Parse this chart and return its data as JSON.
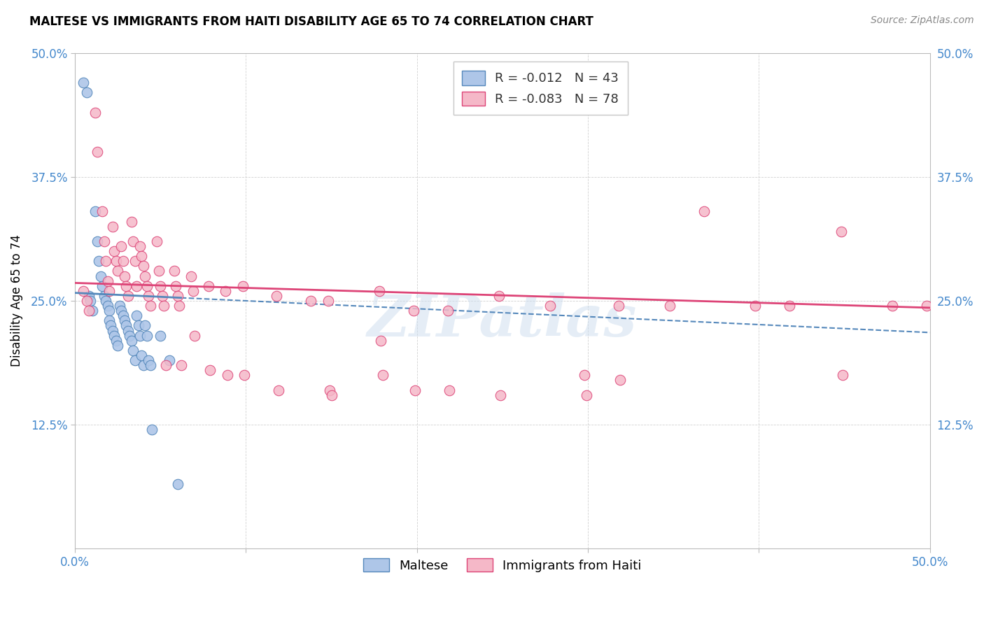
{
  "title": "MALTESE VS IMMIGRANTS FROM HAITI DISABILITY AGE 65 TO 74 CORRELATION CHART",
  "source": "Source: ZipAtlas.com",
  "ylabel": "Disability Age 65 to 74",
  "xlim": [
    0.0,
    0.5
  ],
  "ylim": [
    0.0,
    0.5
  ],
  "xticks": [
    0.0,
    0.1,
    0.2,
    0.3,
    0.4,
    0.5
  ],
  "yticks": [
    0.125,
    0.25,
    0.375,
    0.5
  ],
  "xticklabels_left": [
    "0.0%",
    "",
    "",
    "",
    "",
    "50.0%"
  ],
  "yticklabels": [
    "12.5%",
    "25.0%",
    "37.5%",
    "50.0%"
  ],
  "blue_color": "#aec6e8",
  "pink_color": "#f5b8c8",
  "blue_line_color": "#5588bb",
  "pink_line_color": "#dd4477",
  "legend_R_blue": "-0.012",
  "legend_N_blue": "43",
  "legend_R_pink": "-0.083",
  "legend_N_pink": "78",
  "legend_label_blue": "Maltese",
  "legend_label_pink": "Immigrants from Haiti",
  "watermark": "ZIPatlas",
  "blue_x": [
    0.005,
    0.007,
    0.008,
    0.009,
    0.01,
    0.012,
    0.013,
    0.014,
    0.015,
    0.016,
    0.017,
    0.018,
    0.019,
    0.02,
    0.02,
    0.021,
    0.022,
    0.023,
    0.024,
    0.025,
    0.026,
    0.027,
    0.028,
    0.029,
    0.03,
    0.031,
    0.032,
    0.033,
    0.034,
    0.035,
    0.036,
    0.037,
    0.038,
    0.039,
    0.04,
    0.041,
    0.042,
    0.043,
    0.044,
    0.045,
    0.05,
    0.055,
    0.06
  ],
  "blue_y": [
    0.47,
    0.46,
    0.255,
    0.25,
    0.24,
    0.34,
    0.31,
    0.29,
    0.275,
    0.265,
    0.255,
    0.25,
    0.245,
    0.24,
    0.23,
    0.225,
    0.22,
    0.215,
    0.21,
    0.205,
    0.245,
    0.24,
    0.235,
    0.23,
    0.225,
    0.22,
    0.215,
    0.21,
    0.2,
    0.19,
    0.235,
    0.225,
    0.215,
    0.195,
    0.185,
    0.225,
    0.215,
    0.19,
    0.185,
    0.12,
    0.215,
    0.19,
    0.065
  ],
  "pink_x": [
    0.005,
    0.007,
    0.008,
    0.012,
    0.013,
    0.016,
    0.017,
    0.018,
    0.019,
    0.02,
    0.022,
    0.023,
    0.024,
    0.025,
    0.027,
    0.028,
    0.029,
    0.03,
    0.031,
    0.033,
    0.034,
    0.035,
    0.036,
    0.038,
    0.039,
    0.04,
    0.041,
    0.042,
    0.043,
    0.044,
    0.048,
    0.049,
    0.05,
    0.051,
    0.052,
    0.053,
    0.058,
    0.059,
    0.06,
    0.061,
    0.062,
    0.068,
    0.069,
    0.07,
    0.078,
    0.079,
    0.088,
    0.089,
    0.098,
    0.099,
    0.118,
    0.119,
    0.138,
    0.148,
    0.149,
    0.15,
    0.178,
    0.179,
    0.18,
    0.198,
    0.199,
    0.218,
    0.219,
    0.248,
    0.249,
    0.278,
    0.298,
    0.299,
    0.318,
    0.319,
    0.348,
    0.368,
    0.398,
    0.418,
    0.448,
    0.449,
    0.478,
    0.498
  ],
  "pink_y": [
    0.26,
    0.25,
    0.24,
    0.44,
    0.4,
    0.34,
    0.31,
    0.29,
    0.27,
    0.26,
    0.325,
    0.3,
    0.29,
    0.28,
    0.305,
    0.29,
    0.275,
    0.265,
    0.255,
    0.33,
    0.31,
    0.29,
    0.265,
    0.305,
    0.295,
    0.285,
    0.275,
    0.265,
    0.255,
    0.245,
    0.31,
    0.28,
    0.265,
    0.255,
    0.245,
    0.185,
    0.28,
    0.265,
    0.255,
    0.245,
    0.185,
    0.275,
    0.26,
    0.215,
    0.265,
    0.18,
    0.26,
    0.175,
    0.265,
    0.175,
    0.255,
    0.16,
    0.25,
    0.25,
    0.16,
    0.155,
    0.26,
    0.21,
    0.175,
    0.24,
    0.16,
    0.24,
    0.16,
    0.255,
    0.155,
    0.245,
    0.175,
    0.155,
    0.245,
    0.17,
    0.245,
    0.34,
    0.245,
    0.245,
    0.32,
    0.175,
    0.245,
    0.245
  ]
}
